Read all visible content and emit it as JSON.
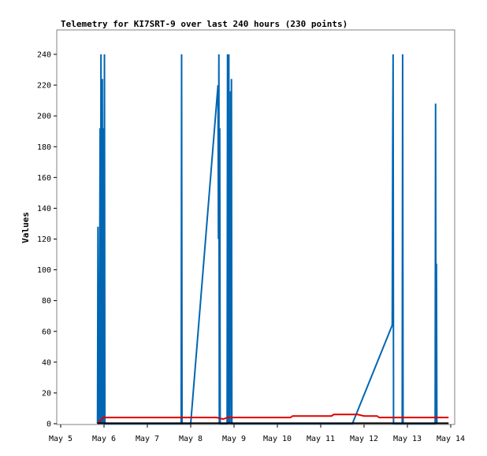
{
  "chart_data": {
    "type": "line",
    "title": "Telemetry for KI7SRT-9 over last 240 hours (230 points)",
    "ylabel": "Values",
    "xlabel": "",
    "ylim": [
      0,
      255
    ],
    "xlim": [
      5.0,
      14.0
    ],
    "yticks": [
      0,
      20,
      40,
      60,
      80,
      100,
      120,
      140,
      160,
      180,
      200,
      220,
      240
    ],
    "xticks": [
      {
        "value": 5,
        "label": "May 5"
      },
      {
        "value": 6,
        "label": "May 6"
      },
      {
        "value": 7,
        "label": "May 7"
      },
      {
        "value": 8,
        "label": "May 8"
      },
      {
        "value": 9,
        "label": "May 9"
      },
      {
        "value": 10,
        "label": "May 10"
      },
      {
        "value": 11,
        "label": "May 11"
      },
      {
        "value": 12,
        "label": "May 12"
      },
      {
        "value": 13,
        "label": "May 13"
      },
      {
        "value": 14,
        "label": "May 14"
      }
    ],
    "grid": false,
    "series": [
      {
        "color": "#0066b3",
        "x": [
          5.85,
          5.86,
          5.87,
          5.88,
          5.89,
          5.9,
          5.91,
          5.92,
          5.93,
          5.94,
          5.95,
          5.96,
          5.97,
          5.98,
          6.0,
          6.01,
          6.02,
          6.03,
          7.78,
          7.79,
          7.8,
          8.0,
          8.63,
          8.64,
          8.65,
          8.66,
          8.67,
          8.68,
          8.84,
          8.85,
          8.86,
          8.87,
          8.88,
          8.89,
          8.9,
          8.91,
          8.92,
          8.93,
          8.94,
          8.95,
          8.96,
          8.97,
          11.73,
          12.65,
          12.66,
          12.67,
          12.68,
          12.69,
          12.88,
          12.89,
          12.9,
          13.64,
          13.65,
          13.66,
          13.67,
          13.68
        ],
        "values": [
          0,
          128,
          0,
          40,
          0,
          96,
          192,
          0,
          240,
          0,
          192,
          224,
          0,
          192,
          0,
          240,
          0,
          0,
          0,
          240,
          0,
          0,
          220,
          120,
          240,
          0,
          192,
          0,
          0,
          240,
          0,
          96,
          240,
          0,
          64,
          20,
          216,
          0,
          224,
          0,
          0,
          0,
          0,
          64,
          176,
          240,
          0,
          0,
          0,
          240,
          0,
          0,
          208,
          0,
          104,
          0
        ]
      },
      {
        "color": "#e00000",
        "x": [
          5.85,
          5.98,
          6.5,
          7.5,
          8.5,
          8.6,
          8.75,
          8.85,
          9.5,
          10.0,
          10.3,
          10.35,
          11.0,
          11.25,
          11.3,
          11.85,
          12.0,
          12.3,
          12.35,
          13.0,
          13.5,
          13.95
        ],
        "values": [
          0,
          4,
          4,
          4,
          4,
          4,
          3,
          4,
          4,
          4,
          4,
          5,
          5,
          5,
          6,
          6,
          5,
          5,
          4,
          4,
          4,
          4
        ]
      },
      {
        "color": "#000000",
        "x": [
          5.85,
          13.95
        ],
        "values": [
          0.3,
          0.3
        ]
      }
    ]
  }
}
